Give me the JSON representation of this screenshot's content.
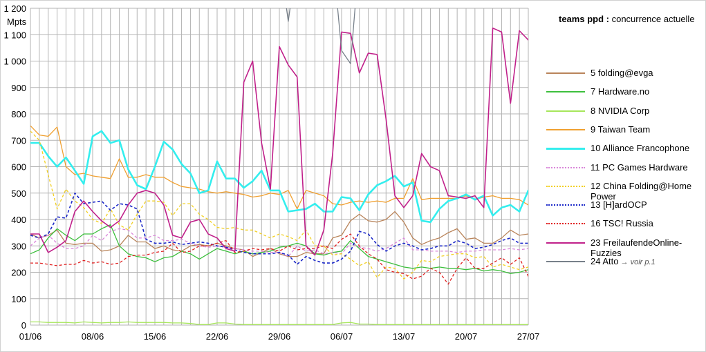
{
  "chart_data": {
    "type": "line",
    "title": "",
    "legend_title_bold": "teams ppd :",
    "legend_title_rest": "concurrence actuelle",
    "ylabel": "Mpts",
    "ylim": [
      0,
      1200
    ],
    "yticks": [
      "0",
      "100",
      "200",
      "300",
      "400",
      "500",
      "600",
      "700",
      "800",
      "900",
      "1 000",
      "1 100",
      "1 200"
    ],
    "xlim": [
      0,
      56
    ],
    "xticks": [
      {
        "i": 0,
        "label": "01/06"
      },
      {
        "i": 7,
        "label": "08/06"
      },
      {
        "i": 14,
        "label": "15/06"
      },
      {
        "i": 21,
        "label": "22/06"
      },
      {
        "i": 28,
        "label": "29/06"
      },
      {
        "i": 35,
        "label": "06/07"
      },
      {
        "i": 42,
        "label": "13/07"
      },
      {
        "i": 49,
        "label": "20/07"
      },
      {
        "i": 56,
        "label": "27/07"
      }
    ],
    "grid": true,
    "legend_position": "right",
    "series": [
      {
        "name": "5 folding@evga",
        "color": "#b9845a",
        "width": 1.3,
        "dash": "",
        "values": [
          345,
          330,
          340,
          360,
          310,
          305,
          310,
          310,
          280,
          285,
          300,
          340,
          315,
          315,
          290,
          300,
          285,
          280,
          300,
          305,
          300,
          310,
          300,
          290,
          285,
          260,
          275,
          290,
          270,
          260,
          260,
          275,
          270,
          270,
          330,
          340,
          395,
          420,
          395,
          390,
          400,
          430,
          390,
          330,
          305,
          320,
          330,
          350,
          365,
          325,
          330,
          310,
          310,
          330,
          360,
          340,
          345
        ]
      },
      {
        "name": "7 Hardware.no",
        "color": "#3cbf3c",
        "width": 1.3,
        "dash": "",
        "values": [
          270,
          285,
          330,
          365,
          340,
          320,
          345,
          345,
          365,
          380,
          300,
          270,
          260,
          255,
          240,
          255,
          260,
          280,
          270,
          250,
          270,
          290,
          280,
          270,
          280,
          270,
          275,
          280,
          295,
          300,
          310,
          300,
          270,
          265,
          275,
          280,
          320,
          290,
          260,
          250,
          240,
          230,
          220,
          215,
          220,
          215,
          220,
          215,
          215,
          210,
          215,
          205,
          210,
          205,
          195,
          200,
          210
        ]
      },
      {
        "name": "8 NVIDIA Corp",
        "color": "#a6e65a",
        "width": 1.3,
        "dash": "",
        "values": [
          12,
          12,
          10,
          10,
          10,
          8,
          12,
          10,
          8,
          10,
          10,
          12,
          10,
          10,
          10,
          10,
          8,
          8,
          6,
          2,
          2,
          8,
          8,
          4,
          2,
          2,
          2,
          2,
          2,
          2,
          2,
          2,
          2,
          2,
          2,
          8,
          10,
          4,
          4,
          2,
          2,
          2,
          2,
          2,
          2,
          2,
          2,
          2,
          2,
          2,
          2,
          2,
          2,
          2,
          2,
          2,
          2
        ]
      },
      {
        "name": "9 Taiwan Team",
        "color": "#f0a030",
        "width": 1.3,
        "dash": "",
        "values": [
          755,
          720,
          715,
          750,
          600,
          570,
          575,
          565,
          560,
          555,
          630,
          560,
          560,
          570,
          560,
          560,
          540,
          525,
          520,
          515,
          505,
          500,
          505,
          500,
          495,
          485,
          490,
          500,
          495,
          510,
          440,
          510,
          500,
          490,
          460,
          455,
          465,
          470,
          465,
          470,
          465,
          480,
          480,
          555,
          475,
          480,
          480,
          480,
          480,
          490,
          475,
          485,
          490,
          480,
          480,
          475,
          455
        ]
      },
      {
        "name": "10 Alliance Francophone",
        "color": "#33eeee",
        "width": 2.6,
        "dash": "",
        "values": [
          690,
          690,
          640,
          600,
          635,
          585,
          535,
          715,
          735,
          690,
          700,
          590,
          530,
          515,
          600,
          695,
          665,
          610,
          575,
          500,
          510,
          620,
          555,
          555,
          520,
          545,
          585,
          510,
          510,
          430,
          435,
          440,
          460,
          430,
          430,
          485,
          480,
          435,
          495,
          530,
          545,
          565,
          525,
          540,
          395,
          390,
          440,
          470,
          480,
          495,
          475,
          490,
          415,
          445,
          455,
          430,
          510,
          500
        ]
      },
      {
        "name": "11 PC Games Hardware",
        "color": "#d986d9",
        "width": 1.3,
        "dash": "4,3",
        "values": [
          300,
          330,
          340,
          310,
          290,
          290,
          300,
          340,
          320,
          355,
          365,
          360,
          330,
          330,
          340,
          320,
          320,
          325,
          310,
          300,
          295,
          300,
          295,
          290,
          285,
          280,
          280,
          275,
          275,
          260,
          300,
          280,
          285,
          270,
          275,
          270,
          310,
          295,
          290,
          280,
          290,
          310,
          330,
          285,
          285,
          280,
          280,
          280,
          275,
          280,
          280,
          285,
          285,
          285,
          290,
          285,
          290
        ]
      },
      {
        "name": "12 China Folding@Home Power",
        "color": "#f2d022",
        "width": 1.3,
        "dash": "4,3",
        "values": [
          735,
          700,
          570,
          440,
          515,
          470,
          445,
          400,
          385,
          440,
          380,
          360,
          420,
          470,
          470,
          465,
          415,
          460,
          460,
          420,
          400,
          370,
          365,
          370,
          360,
          360,
          345,
          330,
          345,
          335,
          320,
          360,
          300,
          300,
          265,
          270,
          250,
          225,
          240,
          180,
          220,
          215,
          175,
          200,
          245,
          240,
          260,
          265,
          270,
          270,
          255,
          260,
          220,
          230,
          220,
          210,
          220
        ]
      },
      {
        "name": "13 [H]ardOCP",
        "color": "#1a27c8",
        "width": 1.6,
        "dash": "4,3",
        "values": [
          340,
          330,
          345,
          410,
          405,
          500,
          460,
          465,
          470,
          435,
          460,
          455,
          440,
          325,
          310,
          310,
          315,
          305,
          310,
          315,
          310,
          300,
          295,
          285,
          275,
          270,
          270,
          270,
          275,
          265,
          230,
          260,
          245,
          235,
          235,
          250,
          280,
          355,
          345,
          305,
          280,
          300,
          310,
          300,
          285,
          290,
          300,
          300,
          320,
          310,
          290,
          295,
          305,
          320,
          330,
          310,
          310,
          290
        ]
      },
      {
        "name": "16 TSC! Russia",
        "color": "#e02020",
        "width": 1.3,
        "dash": "4,3",
        "values": [
          235,
          235,
          230,
          225,
          230,
          230,
          245,
          235,
          240,
          230,
          235,
          260,
          265,
          265,
          275,
          280,
          310,
          275,
          280,
          300,
          300,
          310,
          320,
          275,
          280,
          290,
          285,
          290,
          280,
          300,
          285,
          290,
          290,
          300,
          290,
          325,
          345,
          300,
          270,
          250,
          210,
          200,
          195,
          175,
          185,
          215,
          200,
          155,
          215,
          255,
          215,
          215,
          235,
          255,
          230,
          255,
          185,
          215
        ]
      },
      {
        "name": "23 FreilaufendeOnline-Fuzzies",
        "color": "#c0208a",
        "width": 1.6,
        "dash": "",
        "values": [
          345,
          345,
          275,
          295,
          320,
          430,
          470,
          430,
          395,
          370,
          395,
          455,
          500,
          510,
          500,
          455,
          340,
          330,
          390,
          400,
          345,
          330,
          290,
          280,
          920,
          1000,
          690,
          515,
          1055,
          985,
          940,
          300,
          265,
          360,
          650,
          1110,
          1105,
          955,
          1030,
          1025,
          780,
          490,
          445,
          490,
          650,
          600,
          585,
          490,
          485,
          480,
          490,
          445,
          1125,
          1110,
          840,
          1115,
          1080,
          1130,
          1140,
          1135
        ]
      },
      {
        "name": "24 Atto",
        "note": "→ voir p.1",
        "color": "#77808a",
        "width": 1.3,
        "dash": "",
        "values": [
          null,
          null,
          null,
          null,
          null,
          null,
          null,
          null,
          null,
          null,
          null,
          null,
          null,
          null,
          null,
          null,
          null,
          null,
          null,
          null,
          null,
          null,
          null,
          null,
          null,
          null,
          null,
          null,
          1400,
          1150,
          1400,
          null,
          null,
          null,
          1400,
          1040,
          990,
          1400,
          null,
          null,
          null,
          null,
          null,
          null,
          null,
          null,
          null,
          null,
          null,
          null,
          null,
          null,
          null,
          null,
          null,
          null,
          null
        ]
      }
    ]
  }
}
